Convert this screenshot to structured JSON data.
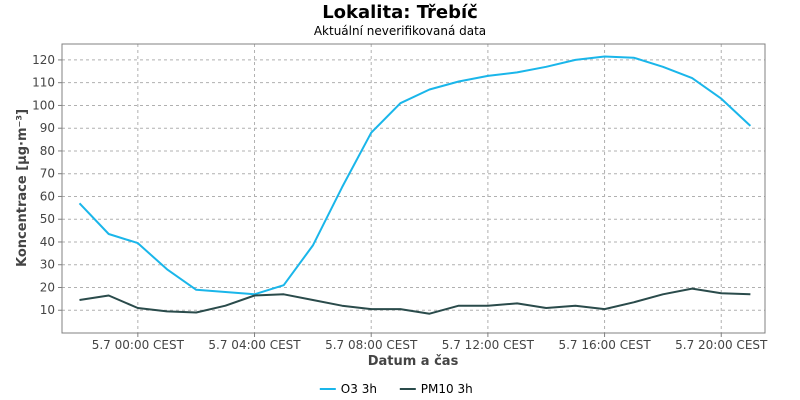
{
  "chart_data": {
    "type": "line",
    "title": "Lokalita: Třebíč",
    "subtitle": "Aktuální neverifikovaná data",
    "xlabel": "Datum a čas",
    "ylabel": "Koncentrace [µg·m⁻³]",
    "x_tick_labels": [
      "5.7 00:00 CEST",
      "5.7 04:00 CEST",
      "5.7 08:00 CEST",
      "5.7 12:00 CEST",
      "5.7 16:00 CEST",
      "5.7 20:00 CEST"
    ],
    "x_tick_hours": [
      0,
      4,
      8,
      12,
      16,
      20
    ],
    "xlim_hours": [
      -2.6,
      21.5
    ],
    "y_ticks": [
      10,
      20,
      30,
      40,
      50,
      60,
      70,
      80,
      90,
      100,
      110,
      120
    ],
    "ylim": [
      0,
      127
    ],
    "grid": true,
    "legend_position": "bottom",
    "x_hours": [
      -2,
      -1,
      0,
      1,
      2,
      3,
      4,
      5,
      6,
      7,
      8,
      9,
      10,
      11,
      12,
      13,
      14,
      15,
      16,
      17,
      18,
      19,
      20,
      21
    ],
    "series": [
      {
        "name": "O3 3h",
        "color": "#1ab6ea",
        "values": [
          57,
          43.5,
          39.5,
          28,
          19,
          18,
          17,
          21,
          38.5,
          64,
          88,
          101,
          107,
          110.5,
          113,
          114.5,
          117,
          120,
          121.5,
          121,
          117,
          112,
          103,
          91
        ]
      },
      {
        "name": "PM10 3h",
        "color": "#2a4b4b",
        "values": [
          14.5,
          16.5,
          11,
          9.5,
          9,
          12,
          16.5,
          17,
          14.5,
          12,
          10.5,
          10.5,
          8.5,
          12,
          12,
          13,
          11,
          12,
          10.5,
          13.5,
          17,
          19.5,
          17.5,
          17
        ]
      }
    ]
  }
}
